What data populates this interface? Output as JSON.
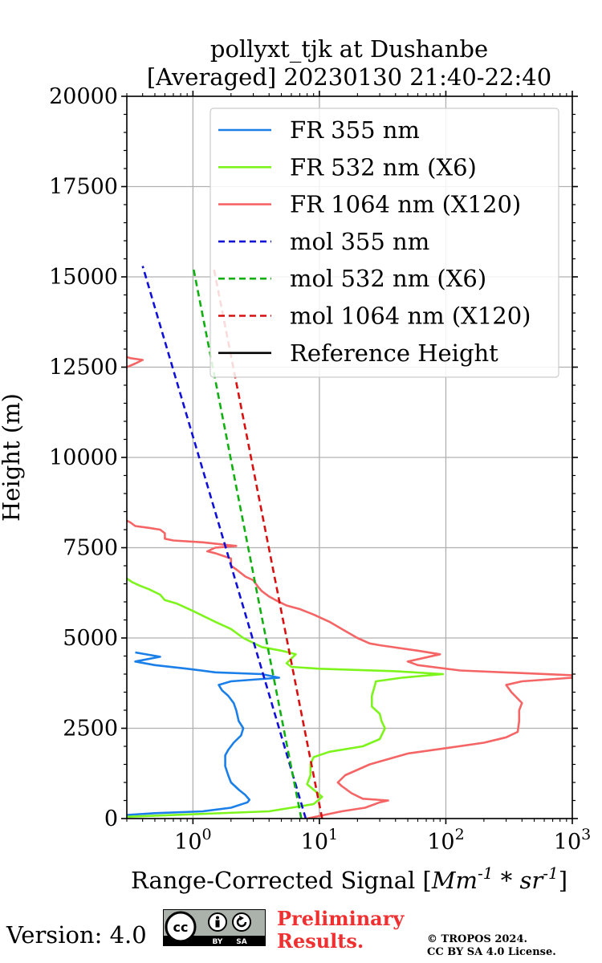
{
  "chart_data": {
    "type": "line",
    "title_line1": "pollyxt_tjk at Dushanbe",
    "title_line2": "[Averaged] 20230130 21:40-22:40",
    "xlabel_text": "Range-Corrected Signal [",
    "xlabel_math": "Mm^-1 * sr^-1",
    "xlabel_close": "]",
    "ylabel": "Height (m)",
    "xscale": "log",
    "xlim": [
      0.3,
      1000
    ],
    "ylim": [
      0,
      20000
    ],
    "grid": true,
    "legend_position": "top-right",
    "yticks": [
      0,
      2500,
      5000,
      7500,
      10000,
      12500,
      15000,
      17500,
      20000
    ],
    "xtick_labels": [
      {
        "value": 1,
        "base": "10",
        "exp": "0"
      },
      {
        "value": 10,
        "base": "10",
        "exp": "1"
      },
      {
        "value": 100,
        "base": "10",
        "exp": "2"
      },
      {
        "value": 1000,
        "base": "10",
        "exp": "3"
      }
    ],
    "series": [
      {
        "name": "FR 355 nm",
        "color": "#1a7fe8",
        "style": "solid",
        "points": [
          [
            0.3,
            100
          ],
          [
            0.5,
            150
          ],
          [
            1.2,
            200
          ],
          [
            2.0,
            300
          ],
          [
            2.7,
            450
          ],
          [
            2.8,
            520
          ],
          [
            2.6,
            650
          ],
          [
            2.3,
            800
          ],
          [
            2.0,
            1000
          ],
          [
            1.9,
            1200
          ],
          [
            1.8,
            1450
          ],
          [
            1.8,
            1750
          ],
          [
            1.9,
            1900
          ],
          [
            2.1,
            2100
          ],
          [
            2.4,
            2300
          ],
          [
            2.5,
            2500
          ],
          [
            2.3,
            2700
          ],
          [
            2.2,
            3000
          ],
          [
            2.1,
            3200
          ],
          [
            1.9,
            3400
          ],
          [
            1.7,
            3550
          ],
          [
            1.6,
            3700
          ],
          [
            2.0,
            3800
          ],
          [
            4.8,
            3900
          ],
          [
            3.5,
            4000
          ],
          [
            1.5,
            4050
          ],
          [
            0.9,
            4150
          ],
          [
            0.5,
            4250
          ],
          [
            0.35,
            4350
          ],
          [
            0.55,
            4480
          ],
          [
            0.35,
            4600
          ]
        ]
      },
      {
        "name": "FR 532 nm (X6)",
        "color": "#7df51c",
        "style": "solid",
        "points": [
          [
            0.3,
            50
          ],
          [
            4.0,
            200
          ],
          [
            9.0,
            400
          ],
          [
            10.5,
            600
          ],
          [
            9.0,
            800
          ],
          [
            8.0,
            950
          ],
          [
            8.5,
            1200
          ],
          [
            8.5,
            1500
          ],
          [
            9.0,
            1700
          ],
          [
            12,
            1850
          ],
          [
            22,
            2000
          ],
          [
            30,
            2200
          ],
          [
            33,
            2500
          ],
          [
            31,
            2700
          ],
          [
            30,
            2900
          ],
          [
            26,
            3100
          ],
          [
            26,
            3400
          ],
          [
            27,
            3600
          ],
          [
            28,
            3800
          ],
          [
            45,
            3900
          ],
          [
            95,
            4000
          ],
          [
            40,
            4080
          ],
          [
            10,
            4150
          ],
          [
            6,
            4200
          ],
          [
            5.5,
            4300
          ],
          [
            6.5,
            4550
          ],
          [
            5.0,
            4650
          ],
          [
            3.5,
            4750
          ],
          [
            2.5,
            5000
          ],
          [
            2.0,
            5250
          ],
          [
            1.5,
            5450
          ],
          [
            1.0,
            5750
          ],
          [
            0.75,
            5950
          ],
          [
            0.6,
            6050
          ],
          [
            0.55,
            6200
          ],
          [
            0.45,
            6350
          ],
          [
            0.38,
            6450
          ],
          [
            0.33,
            6550
          ],
          [
            0.3,
            6650
          ]
        ]
      },
      {
        "name": "FR 1064 nm (X120)",
        "color": "#f56565",
        "style": "solid",
        "points": [
          [
            8,
            0
          ],
          [
            15,
            200
          ],
          [
            23,
            300
          ],
          [
            30,
            450
          ],
          [
            35,
            500
          ],
          [
            22,
            550
          ],
          [
            18,
            700
          ],
          [
            15,
            900
          ],
          [
            14,
            1000
          ],
          [
            16,
            1200
          ],
          [
            25,
            1500
          ],
          [
            50,
            1800
          ],
          [
            100,
            1950
          ],
          [
            200,
            2100
          ],
          [
            300,
            2250
          ],
          [
            370,
            2400
          ],
          [
            380,
            2700
          ],
          [
            380,
            3000
          ],
          [
            400,
            3200
          ],
          [
            330,
            3500
          ],
          [
            300,
            3700
          ],
          [
            400,
            3800
          ],
          [
            1000,
            3900
          ],
          [
            1000,
            3970
          ],
          [
            130,
            4100
          ],
          [
            60,
            4250
          ],
          [
            50,
            4350
          ],
          [
            90,
            4550
          ],
          [
            60,
            4650
          ],
          [
            30,
            4800
          ],
          [
            25,
            4850
          ],
          [
            20,
            5000
          ],
          [
            15,
            5250
          ],
          [
            12,
            5450
          ],
          [
            9,
            5650
          ],
          [
            7,
            5800
          ],
          [
            5.5,
            5900
          ],
          [
            4.5,
            6050
          ],
          [
            4.0,
            6150
          ],
          [
            3.5,
            6300
          ],
          [
            3.3,
            6400
          ],
          [
            3.0,
            6600
          ],
          [
            2.6,
            6700
          ],
          [
            2.2,
            6900
          ],
          [
            2.0,
            7000
          ],
          [
            2.0,
            7200
          ],
          [
            1.5,
            7350
          ],
          [
            1.3,
            7400
          ],
          [
            1.5,
            7500
          ],
          [
            2.2,
            7550
          ],
          [
            1.2,
            7650
          ],
          [
            0.7,
            7700
          ],
          [
            0.6,
            7750
          ],
          [
            0.6,
            7900
          ],
          [
            0.55,
            8000
          ],
          [
            0.45,
            8050
          ],
          [
            0.35,
            8100
          ],
          [
            0.32,
            8200
          ],
          [
            0.3,
            8250
          ]
        ]
      },
      {
        "name": "FR 1064 nm segment",
        "color": "#f56565",
        "style": "solid",
        "points": [
          [
            0.3,
            12500
          ],
          [
            0.35,
            12600
          ],
          [
            0.4,
            12700
          ],
          [
            0.32,
            12750
          ],
          [
            0.3,
            12780
          ]
        ]
      },
      {
        "name": "mol 355 nm",
        "color": "#1010d8",
        "style": "dashed",
        "points": [
          [
            7.8,
            0
          ],
          [
            0.4,
            15300
          ]
        ]
      },
      {
        "name": "mol 532 nm (X6)",
        "color": "#10b010",
        "style": "dashed",
        "points": [
          [
            7.2,
            0
          ],
          [
            1.0,
            15300
          ]
        ]
      },
      {
        "name": "mol 1064 nm (X120)",
        "color": "#d81010",
        "style": "dashed",
        "points": [
          [
            10.5,
            0
          ],
          [
            1.45,
            15300
          ]
        ]
      }
    ],
    "legend": [
      {
        "label": "FR 355 nm",
        "color": "#1a7fe8",
        "style": "solid"
      },
      {
        "label": "FR 532 nm (X6)",
        "color": "#7df51c",
        "style": "solid"
      },
      {
        "label": "FR 1064 nm (X120)",
        "color": "#f56565",
        "style": "solid"
      },
      {
        "label": "mol 355 nm",
        "color": "#1010d8",
        "style": "dashed"
      },
      {
        "label": "mol 532 nm (X6)",
        "color": "#10b010",
        "style": "dashed"
      },
      {
        "label": "mol 1064 nm (X120)",
        "color": "#d81010",
        "style": "dashed"
      },
      {
        "label": "Reference Height",
        "color": "#000000",
        "style": "solid"
      }
    ]
  },
  "footer": {
    "version": "Version: 4.0",
    "license_badge": {
      "cc": "cc",
      "by": "BY",
      "sa": "SA"
    },
    "preliminary_line1": "Preliminary",
    "preliminary_line2": "Results.",
    "copyright_line1": "© TROPOS 2024.",
    "copyright_line2": "CC BY SA 4.0 License."
  }
}
